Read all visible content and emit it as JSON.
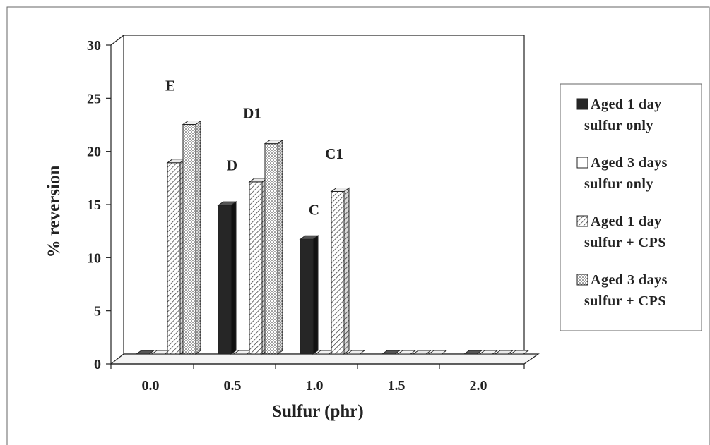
{
  "chart_data": {
    "type": "bar",
    "title": "",
    "xlabel": "Sulfur (phr)",
    "ylabel": "% reversion",
    "categories": [
      "0.0",
      "0.5",
      "1.0",
      "1.5",
      "2.0"
    ],
    "ylim": [
      0,
      30
    ],
    "yticks": [
      "0",
      "5",
      "10",
      "15",
      "20",
      "25",
      "30"
    ],
    "grid": false,
    "legend_position": "right",
    "series": [
      {
        "name": "Aged 1 day sulfur only",
        "legend_lines": [
          "Aged 1 day",
          "sulfur only"
        ],
        "pattern": "solid",
        "color": "#262626",
        "values": [
          0,
          14,
          10.8,
          0,
          0
        ]
      },
      {
        "name": "Aged 3 days sulfur only",
        "legend_lines": [
          "Aged 3 days",
          "sulfur only"
        ],
        "pattern": "white",
        "color": "#ffffff",
        "values": [
          0,
          0,
          0,
          0,
          0
        ]
      },
      {
        "name": "Aged 1 day sulfur + CPS",
        "legend_lines": [
          "Aged 1 day",
          "sulfur + CPS"
        ],
        "pattern": "hatch",
        "color": "#ffffff",
        "values": [
          18,
          16.2,
          15.3,
          0,
          0
        ]
      },
      {
        "name": "Aged 3 days sulfur + CPS",
        "legend_lines": [
          "Aged 3 days",
          "sulfur + CPS"
        ],
        "pattern": "dots",
        "color": "#ffffff",
        "values": [
          21.6,
          19.8,
          0,
          0,
          0
        ]
      }
    ],
    "annotations": [
      {
        "text": "E",
        "category": "0.0",
        "y": 24.8
      },
      {
        "text": "D",
        "category": "0.5",
        "y": 17.3
      },
      {
        "text": "D1",
        "category": "0.5",
        "y": 22.2
      },
      {
        "text": "C",
        "category": "1.0",
        "y": 13.1
      },
      {
        "text": "C1",
        "category": "1.0",
        "y": 18.4
      }
    ]
  }
}
